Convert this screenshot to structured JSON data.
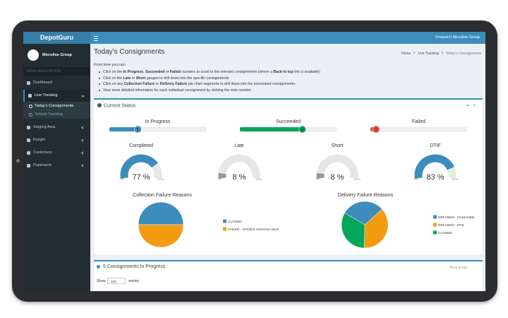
{
  "header": {
    "logo": "DepotGuru",
    "user": "Despatch Microlise Group"
  },
  "sidebar": {
    "org": "Microlise Group",
    "section": "MAIN NAVIGATION",
    "items": [
      {
        "label": "Dashboard"
      },
      {
        "label": "Live Tracking",
        "children": [
          "Today's Consignments",
          "Vehicle Tracking"
        ]
      },
      {
        "label": "Staging Area"
      },
      {
        "label": "Freight"
      },
      {
        "label": "Customers"
      },
      {
        "label": "Paperwork"
      }
    ]
  },
  "page": {
    "title": "Today's Consignments",
    "breadcrumb": [
      "Home",
      "Live Tracking",
      "Today's Consignments"
    ],
    "intro": "From here you can:",
    "instructions": [
      [
        "Click on the ",
        "In Progress",
        ", ",
        "Succeeded",
        " or ",
        "Failed",
        " counters to scroll to the relevant consignments (where a ",
        "Back to top",
        " link is available)"
      ],
      [
        "Click on the ",
        "Late",
        " or ",
        "Short",
        " gauges to drill down into the specific consignments"
      ],
      [
        "Click on any ",
        "Collection Failure",
        " or ",
        "Delivery Failure",
        " pie chart segments to drill down into the associated consignments"
      ],
      [
        "View more detailed information for each individual consignment by clicking the note number"
      ]
    ]
  },
  "status": {
    "title": "Current Status",
    "counters": [
      {
        "label": "In Progress",
        "value": 5,
        "color": "#3c8dbc"
      },
      {
        "label": "Succeeded",
        "value": 11,
        "color": "#00a65a"
      },
      {
        "label": "Failed",
        "value": 1,
        "color": "#dd4b39"
      }
    ],
    "gauges": [
      {
        "title": "Completed",
        "value": 77,
        "value_label": "77 %",
        "min_label": "0%",
        "max_label": "100%",
        "color": "#3c8dbc",
        "track": "#e6e6e6"
      },
      {
        "title": "Late",
        "value": 8,
        "value_label": "8 %",
        "min_label": "0%",
        "max_label": "100%",
        "color": "#8e9aa3",
        "track": "#e6e6e6"
      },
      {
        "title": "Short",
        "value": 8,
        "value_label": "8 %",
        "min_label": "0%",
        "max_label": "100%",
        "color": "#8e9aa3",
        "track": "#e6e6e6"
      },
      {
        "title": "DTIF",
        "value": 83,
        "value_label": "83 %",
        "min_label": "0%",
        "max_label": "100%",
        "color": "#3c8dbc",
        "track": "#dff0d8"
      }
    ],
    "pies": [
      {
        "title": "Collection Failure Reasons",
        "segments": [
          {
            "name": "CLOSED",
            "value": 50,
            "color": "#3c8dbc"
          },
          {
            "name": "FAILED - GOODS UNAVAILABLE",
            "value": 50,
            "color": "#f39c12"
          }
        ]
      },
      {
        "title": "Delivery Failure Reasons",
        "segments": [
          {
            "name": "REFUSED - DAMAGED",
            "value": 30,
            "color": "#3c8dbc"
          },
          {
            "name": "REFUSED - RTS",
            "value": 37,
            "color": "#f39c12"
          },
          {
            "name": "CLOSED",
            "value": 33,
            "color": "#00a65a"
          }
        ]
      }
    ]
  },
  "progress": {
    "title": "5 Consignments In Progress",
    "back": "Back to top",
    "show": "Show",
    "entries_value": "100",
    "entries": "entries"
  }
}
